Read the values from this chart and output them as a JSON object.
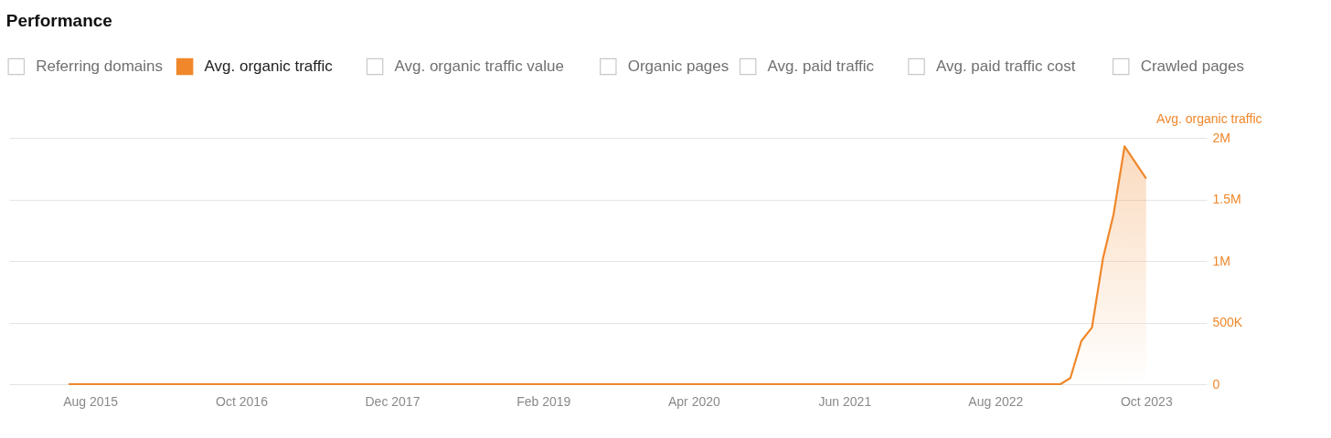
{
  "chart_data": {
    "type": "area",
    "title": "Performance",
    "annotations": [
      "Referring domains",
      "Avg. organic traffic value",
      "Organic pages",
      "Avg. paid traffic",
      "Avg. paid traffic cost",
      "Crawled pages"
    ],
    "ylabel": "Avg. organic traffic",
    "x": [
      "2015-06",
      "2023-02",
      "2023-03",
      "2023-04",
      "2023-05",
      "2023-06",
      "2023-07",
      "2023-08",
      "2023-10"
    ],
    "series": [
      {
        "name": "Avg. organic traffic",
        "color": "#f0872a",
        "values": [
          0,
          0,
          50000,
          350000,
          460000,
          1020000,
          1380000,
          1930000,
          1670000
        ]
      }
    ],
    "xlim": [
      "2014-12-15",
      "2024-03-20"
    ],
    "xticks": [
      {
        "value": "2015-08",
        "label": "Aug 2015"
      },
      {
        "value": "2016-10",
        "label": "Oct 2016"
      },
      {
        "value": "2017-12",
        "label": "Dec 2017"
      },
      {
        "value": "2019-02",
        "label": "Feb 2019"
      },
      {
        "value": "2020-04",
        "label": "Apr 2020"
      },
      {
        "value": "2021-06",
        "label": "Jun 2021"
      },
      {
        "value": "2022-08",
        "label": "Aug 2022"
      },
      {
        "value": "2023-10",
        "label": "Oct 2023"
      }
    ],
    "ylim": [
      0,
      2000000
    ],
    "yticks": [
      0,
      {
        "value": 500000,
        "label": "500K"
      },
      {
        "value": 1000000,
        "label": "1M"
      },
      {
        "value": 1500000,
        "label": "1.5M"
      },
      {
        "value": 2000000,
        "label": "2M"
      }
    ],
    "grid": "y",
    "legend": "top left",
    "marker": "none"
  }
}
